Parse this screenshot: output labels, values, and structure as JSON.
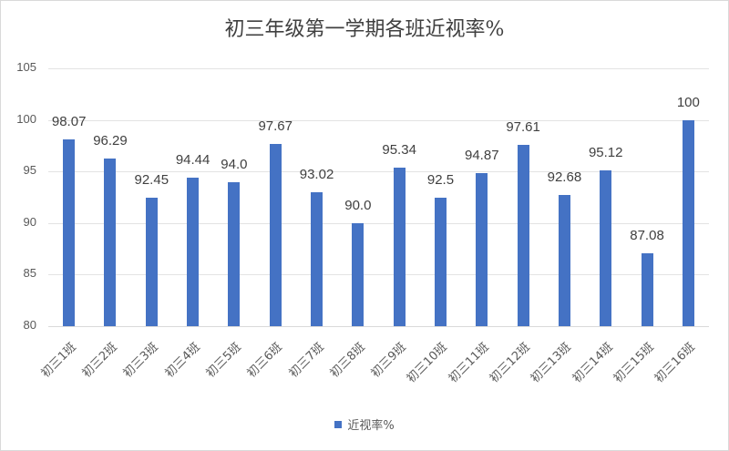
{
  "chart_data": {
    "type": "bar",
    "title": "初三年级第一学期各班近视率%",
    "xlabel": "",
    "ylabel": "",
    "ylim": [
      80,
      105
    ],
    "yticks": [
      80,
      85,
      90,
      95,
      100,
      105
    ],
    "grid": true,
    "legend_position": "bottom",
    "categories": [
      "初三1班",
      "初三2班",
      "初三3班",
      "初三4班",
      "初三5班",
      "初三6班",
      "初三7班",
      "初三8班",
      "初三9班",
      "初三10班",
      "初三11班",
      "初三12班",
      "初三13班",
      "初三14班",
      "初三15班",
      "初三16班"
    ],
    "series": [
      {
        "name": "近视率%",
        "color": "#4472c4",
        "values": [
          98.07,
          96.29,
          92.45,
          94.44,
          94.0,
          97.67,
          93.02,
          90.0,
          95.34,
          92.5,
          94.87,
          97.61,
          92.68,
          95.12,
          87.08,
          100
        ],
        "labels": [
          "98.07",
          "96.29",
          "92.45",
          "94.44",
          "94.0",
          "97.67",
          "93.02",
          "90.0",
          "95.34",
          "92.5",
          "94.87",
          "97.61",
          "92.68",
          "95.12",
          "87.08",
          "100"
        ]
      }
    ]
  },
  "legend": {
    "label": "近视率%"
  }
}
